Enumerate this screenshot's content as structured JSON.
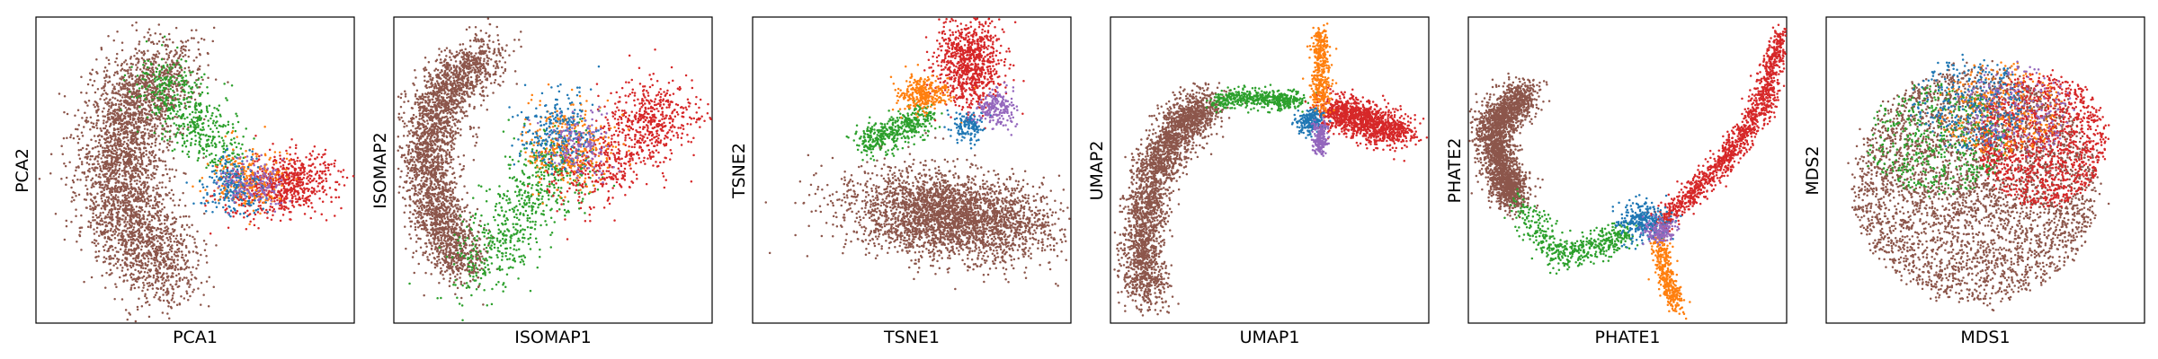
{
  "colors": {
    "brown": "#8c564b",
    "green": "#2ca02c",
    "blue": "#1f77b4",
    "orange": "#ff7f0e",
    "red": "#d62728",
    "purple": "#9467bd"
  },
  "chart_data": [
    {
      "type": "scatter",
      "xlabel": "PCA1",
      "ylabel": "PCA2",
      "ticks": "none"
    },
    {
      "type": "scatter",
      "xlabel": "ISOMAP1",
      "ylabel": "ISOMAP2",
      "ticks": "none"
    },
    {
      "type": "scatter",
      "xlabel": "TSNE1",
      "ylabel": "TSNE2",
      "ticks": "none"
    },
    {
      "type": "scatter",
      "xlabel": "UMAP1",
      "ylabel": "UMAP2",
      "ticks": "none"
    },
    {
      "type": "scatter",
      "xlabel": "PHATE1",
      "ylabel": "PHATE2",
      "ticks": "none"
    },
    {
      "type": "scatter",
      "xlabel": "MDS1",
      "ylabel": "MDS2",
      "ticks": "none"
    }
  ]
}
